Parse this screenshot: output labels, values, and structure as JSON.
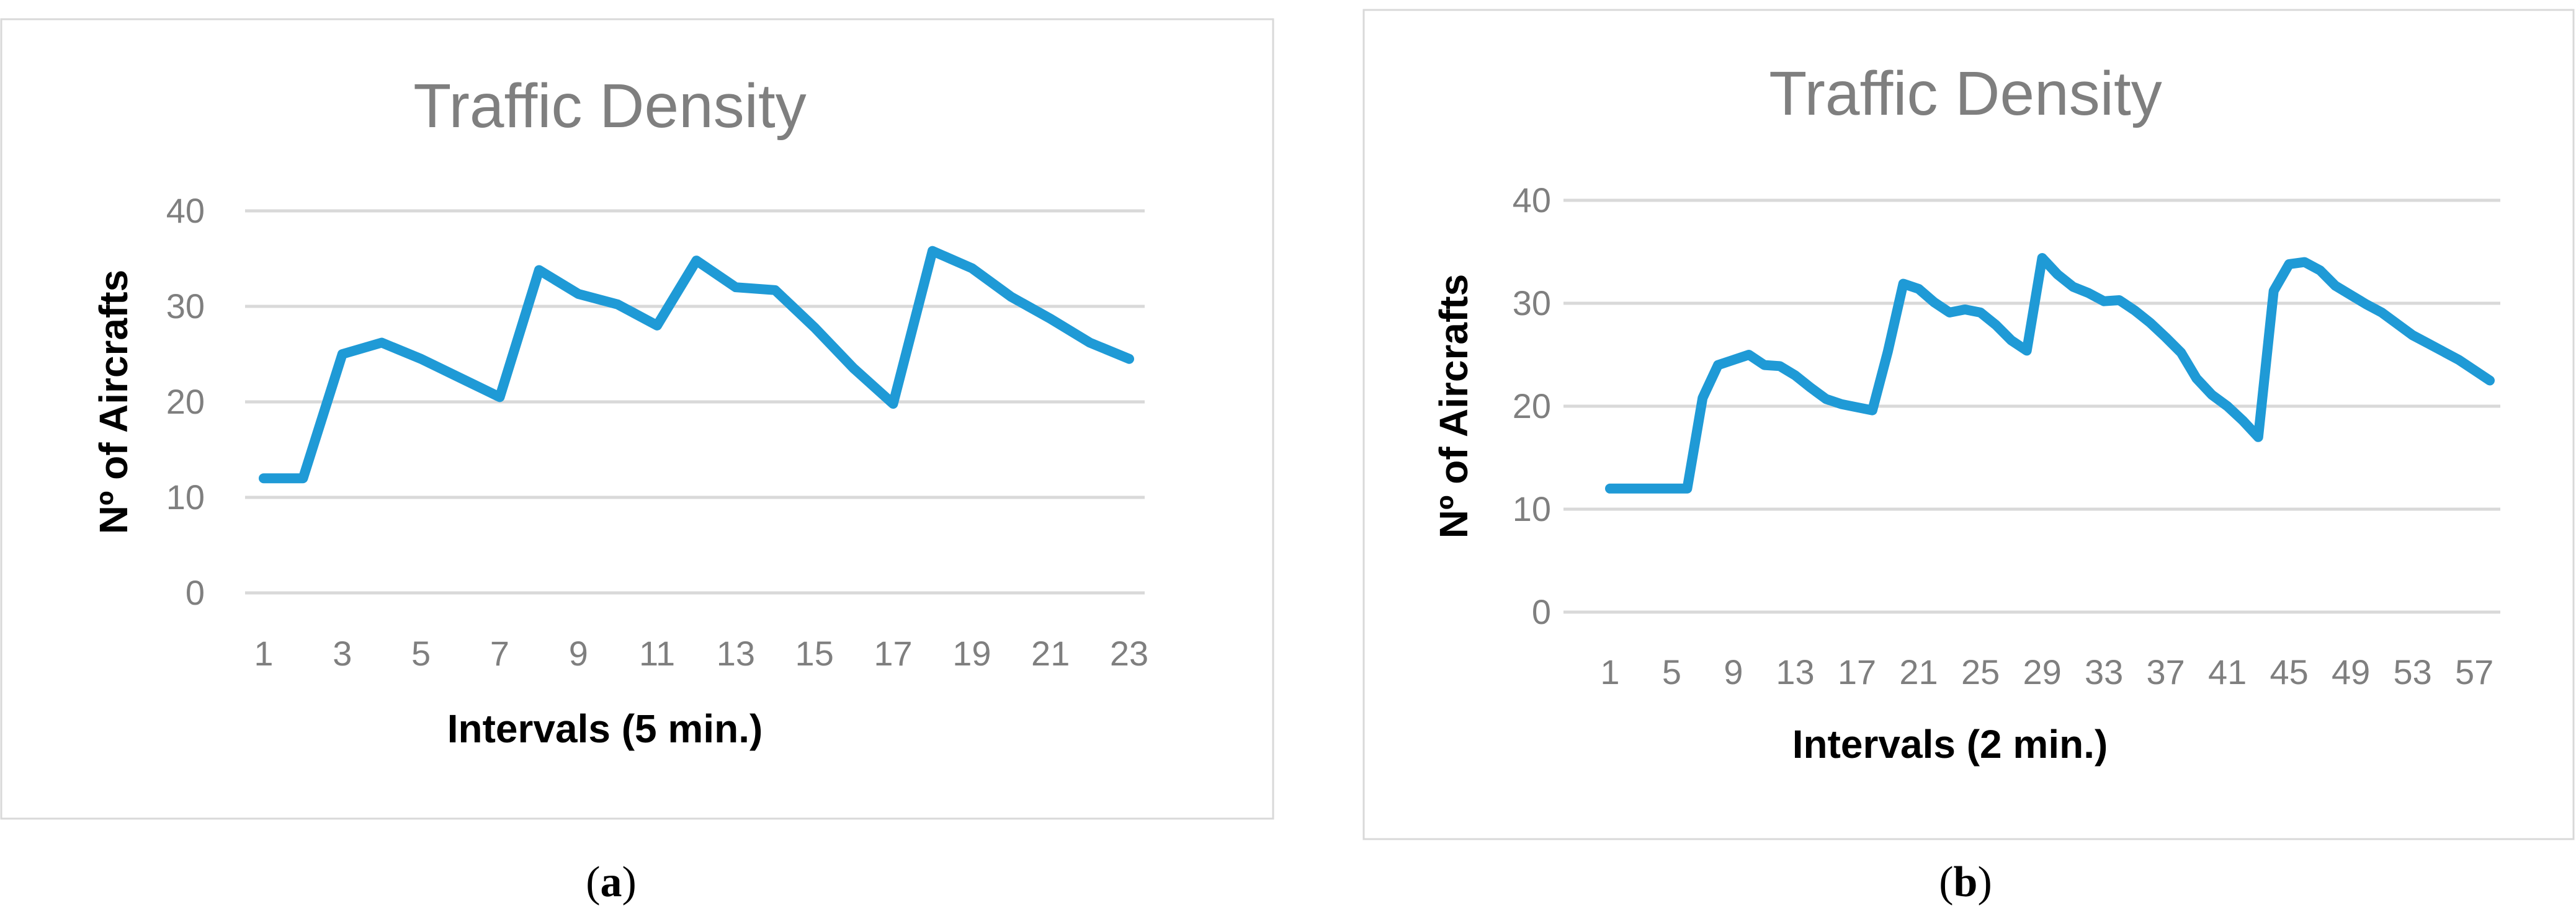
{
  "colors": {
    "series": "#1f9ad6"
  },
  "chart_data": [
    {
      "type": "line",
      "title": "Traffic Density",
      "xlabel": "Intervals (5 min.)",
      "ylabel": "Nº of Aircrafts",
      "caption": {
        "open": "(",
        "letter": "a",
        "close": ")"
      },
      "ylim": [
        0,
        40
      ],
      "yticks": [
        "0",
        "10",
        "20",
        "30",
        "40"
      ],
      "xticks": [
        "1",
        "3",
        "5",
        "7",
        "9",
        "11",
        "13",
        "15",
        "17",
        "19",
        "21",
        "23"
      ],
      "grid": true,
      "legend": "none",
      "x": [
        1,
        2,
        3,
        4,
        5,
        6,
        7,
        8,
        9,
        10,
        11,
        12,
        13,
        14,
        15,
        16,
        17,
        18,
        19,
        20,
        21,
        22,
        23
      ],
      "series": [
        {
          "values": [
            12,
            12,
            25,
            26.2,
            24.5,
            22.5,
            20.5,
            33.8,
            31.3,
            30.2,
            28,
            34.8,
            32,
            31.7,
            27.8,
            23.5,
            19.8,
            35.8,
            34,
            31,
            28.7,
            26.2,
            24.5
          ]
        }
      ]
    },
    {
      "type": "line",
      "title": "Traffic Density",
      "xlabel": "Intervals (2 min.)",
      "ylabel": "Nº of Aircrafts",
      "caption": {
        "open": "(",
        "letter": "b",
        "close": ")"
      },
      "ylim": [
        0,
        40
      ],
      "yticks": [
        "0",
        "10",
        "20",
        "30",
        "40"
      ],
      "xticks": [
        "1",
        "5",
        "9",
        "13",
        "17",
        "21",
        "25",
        "29",
        "33",
        "37",
        "41",
        "45",
        "49",
        "53",
        "57"
      ],
      "grid": true,
      "legend": "none",
      "x": [
        1,
        2,
        3,
        4,
        5,
        6,
        7,
        8,
        9,
        10,
        11,
        12,
        13,
        14,
        15,
        16,
        17,
        18,
        19,
        20,
        21,
        22,
        23,
        24,
        25,
        26,
        27,
        28,
        29,
        30,
        31,
        32,
        33,
        34,
        35,
        36,
        37,
        38,
        39,
        40,
        41,
        42,
        43,
        44,
        45,
        46,
        47,
        48,
        49,
        50,
        51,
        52,
        53,
        54,
        55,
        56,
        57,
        58
      ],
      "series": [
        {
          "values": [
            12,
            12,
            12,
            12,
            12,
            12,
            20.8,
            24,
            24.5,
            25,
            24,
            23.9,
            23,
            21.8,
            20.7,
            20.2,
            19.9,
            19.6,
            25.3,
            31.9,
            31.4,
            30.1,
            29.1,
            29.4,
            29.1,
            27.9,
            26.4,
            25.4,
            34.4,
            32.8,
            31.6,
            31,
            30.2,
            30.3,
            29.3,
            28.1,
            26.7,
            25.2,
            22.7,
            21.1,
            20,
            18.6,
            17,
            31.2,
            33.8,
            34,
            33.2,
            31.7,
            30.8,
            29.9,
            29.1,
            28,
            26.9,
            26.1,
            25.3,
            24.5,
            23.5,
            22.5
          ]
        }
      ]
    }
  ]
}
